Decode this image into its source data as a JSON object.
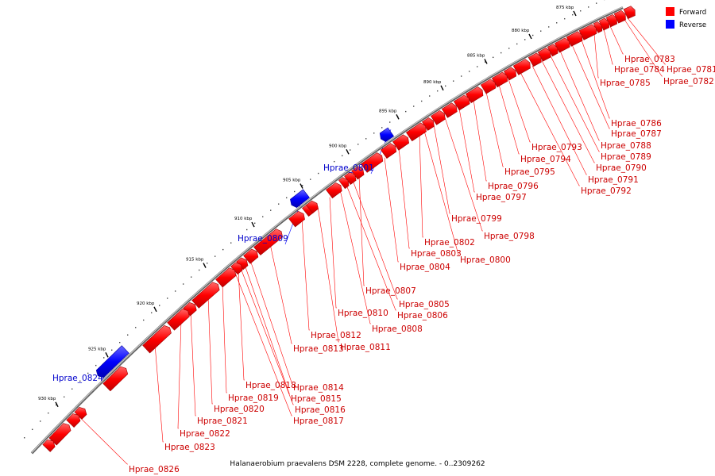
{
  "title": "Halanaerobium praevalens DSM 2228, complete genome. - 0..2309262",
  "legend": [
    {
      "label": "Forward",
      "color": "#ff0000"
    },
    {
      "label": "Reverse",
      "color": "#0000ff"
    }
  ],
  "colors": {
    "forward": "#ff0000",
    "reverse": "#0000ff",
    "backbone": "#888888"
  },
  "ticks": [
    "875 kbp",
    "880 kbp",
    "885 kbp",
    "890 kbp",
    "895 kbp",
    "900 kbp",
    "905 kbp",
    "910 kbp",
    "915 kbp",
    "920 kbp",
    "925 kbp",
    "930 kbp"
  ],
  "forward_genes": [
    "Hprae_0781",
    "Hprae_0782",
    "Hprae_0783",
    "Hprae_0784",
    "Hprae_0785",
    "Hprae_0786",
    "Hprae_0787",
    "Hprae_0788",
    "Hprae_0789",
    "Hprae_0790",
    "Hprae_0791",
    "Hprae_0792",
    "Hprae_0793",
    "Hprae_0794",
    "Hprae_0795",
    "Hprae_0796",
    "Hprae_0797",
    "Hprae_0798",
    "Hprae_0799",
    "Hprae_0800",
    "Hprae_0802",
    "Hprae_0803",
    "Hprae_0804",
    "Hprae_0805",
    "Hprae_0806",
    "Hprae_0807",
    "Hprae_0808",
    "Hprae_0810",
    "Hprae_0811",
    "Hprae_0812",
    "Hprae_0813",
    "Hprae_0814",
    "Hprae_0815",
    "Hprae_0816",
    "Hprae_0817",
    "Hprae_0818",
    "Hprae_0819",
    "Hprae_0820",
    "Hprae_0821",
    "Hprae_0822",
    "Hprae_0823",
    "Hprae_0826"
  ],
  "reverse_genes": [
    "Hprae_0801",
    "Hprae_0809",
    "Hprae_0824"
  ]
}
